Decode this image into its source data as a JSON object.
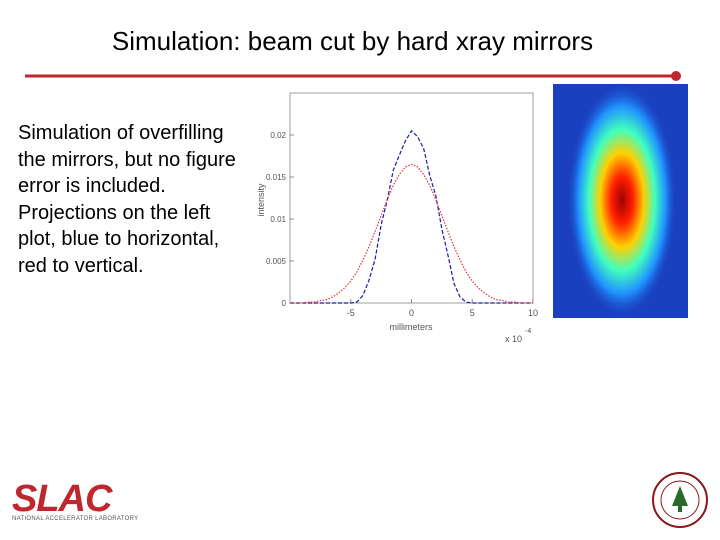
{
  "header": {
    "title": "Simulation: beam cut by hard xray mirrors"
  },
  "body": {
    "text": "Simulation of overfilling the mirrors, but no figure error is included. Projections on the left plot, blue to horizontal, red to vertical."
  },
  "chart_data": {
    "type": "line",
    "xlabel": "millimeters",
    "ylabel": "intensity",
    "x_multiplier": "x 10",
    "x_exponent": "-4",
    "x": [
      -10,
      -9.5,
      -9,
      -8.5,
      -8,
      -7.5,
      -7,
      -6.5,
      -6,
      -5.5,
      -5,
      -4.5,
      -4,
      -3.5,
      -3,
      -2.5,
      -2,
      -1.5,
      -1,
      -0.5,
      0,
      0.5,
      1,
      1.5,
      2,
      2.5,
      3,
      3.5,
      4,
      4.5,
      5,
      5.5,
      6,
      6.5,
      7,
      7.5,
      8,
      8.5,
      9,
      9.5,
      10
    ],
    "series": [
      {
        "name": "horizontal",
        "color": "#1a1aa8",
        "values": [
          0,
          0,
          0,
          0,
          0,
          0,
          0,
          0,
          0,
          0,
          0,
          0.0001,
          0.0009,
          0.0027,
          0.0052,
          0.0093,
          0.0122,
          0.0158,
          0.0176,
          0.0193,
          0.0205,
          0.0198,
          0.0184,
          0.0152,
          0.0128,
          0.0088,
          0.0057,
          0.0023,
          0.0007,
          0.0001,
          0,
          0,
          0,
          0,
          0,
          0,
          0,
          0,
          0,
          0,
          0
        ]
      },
      {
        "name": "vertical",
        "color": "#e0303a",
        "values": [
          0,
          0,
          0,
          0.0001,
          0.0001,
          0.0003,
          0.0004,
          0.0007,
          0.0012,
          0.0018,
          0.0026,
          0.0037,
          0.0051,
          0.0067,
          0.0085,
          0.0104,
          0.0123,
          0.014,
          0.0153,
          0.0162,
          0.0165,
          0.0162,
          0.0153,
          0.014,
          0.0123,
          0.0104,
          0.0085,
          0.0067,
          0.0051,
          0.0037,
          0.0026,
          0.0018,
          0.0012,
          0.0007,
          0.0004,
          0.0003,
          0.0001,
          0.0001,
          0,
          0,
          0
        ]
      }
    ],
    "xlim": [
      -10,
      10
    ],
    "xticks": [
      -5,
      0,
      5,
      10
    ],
    "ylim": [
      0,
      0.025
    ],
    "yticks": [
      0,
      0.005,
      0.01,
      0.015,
      0.02
    ]
  },
  "footer": {
    "logo": "SLAC",
    "logo_subtitle": "NATIONAL ACCELERATOR LABORATORY"
  }
}
